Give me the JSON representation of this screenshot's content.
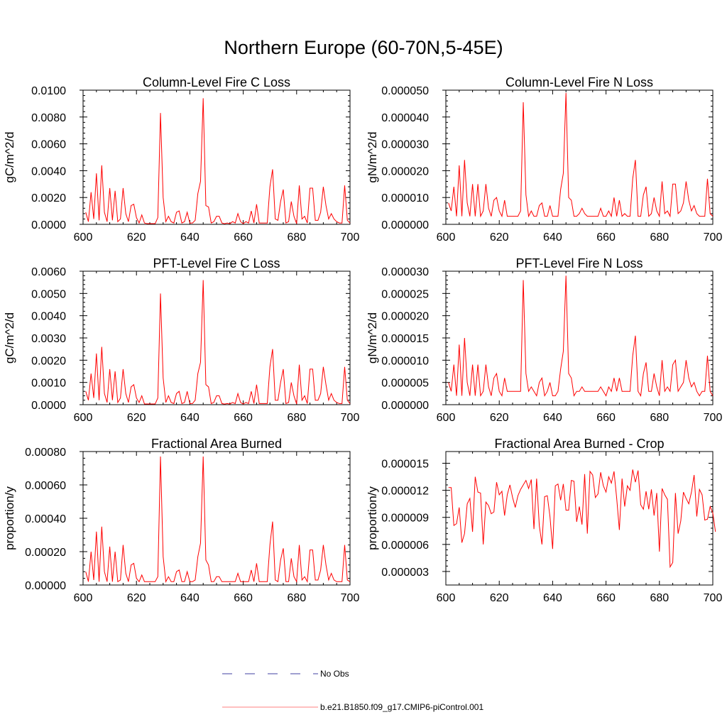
{
  "page_title": "Northern Europe (60-70N,5-45E)",
  "colors": {
    "model_line": "#ff0000",
    "obs_line": "#4040a0",
    "axis": "#000000"
  },
  "legend": [
    {
      "label": "No Obs",
      "style": "dashed",
      "color": "#4040a0"
    },
    {
      "label": "b.e21.B1850.f09_g17.CMIP6-piControl.001",
      "style": "solid",
      "color": "#ff8080"
    }
  ],
  "chart_data": [
    {
      "type": "line",
      "title": "Column-Level Fire C Loss",
      "ylabel": "gC/m^2/d",
      "xlim": [
        600,
        700
      ],
      "ylim": [
        0,
        0.01
      ],
      "xticks": [
        "600",
        "620",
        "640",
        "660",
        "680",
        "700"
      ],
      "yticks": [
        "0.0000",
        "0.0020",
        "0.0040",
        "0.0060",
        "0.0080",
        "0.0100"
      ],
      "x_start": 601,
      "series": [
        {
          "values": [
            0.0009,
            0.0002,
            0.0024,
            0.0004,
            0.0038,
            0.0003,
            0.0044,
            0.0009,
            0.0002,
            0.0027,
            0.0003,
            0.0025,
            0.0002,
            0.0004,
            0.0027,
            0.0008,
            0.0002,
            0.0014,
            0.0015,
            0.0005,
            0.0001,
            0.0007,
            0.0001,
            5e-05,
            5e-05,
            5e-05,
            5e-05,
            0.0005,
            0.0083,
            0.002,
            0.0002,
            0.0006,
            0.0002,
            0.0001,
            0.0009,
            0.001,
            0.0001,
            0.0002,
            0.0009,
            0.0001,
            0.0001,
            0.0003,
            0.0023,
            0.0032,
            0.0094,
            0.0014,
            0.0013,
            0.0001,
            0.0002,
            0.0006,
            0.0006,
            0.0001,
            5e-05,
            0.0001,
            5e-05,
            0.0002,
            0.0001,
            0.0008,
            0.0002,
            5e-05,
            0.0002,
            0.0001,
            0.001,
            0.0001,
            0.0015,
            0.0001,
            0.0001,
            0.0001,
            0.0001,
            0.0028,
            0.0041,
            0.0004,
            0.0003,
            0.0017,
            0.0026,
            0.0001,
            0.0002,
            0.0017,
            0.0006,
            5e-05,
            0.0029,
            0.0004,
            0.0006,
            0.0001,
            0.0027,
            0.0027,
            0.0003,
            0.0003,
            0.0009,
            0.0028,
            0.0014,
            0.0004,
            0.0008,
            0.0004,
            0.0002,
            0.0001,
            0.0001,
            0.0029,
            0.0003,
            0.0001
          ]
        }
      ]
    },
    {
      "type": "line",
      "title": "Column-Level Fire N Loss",
      "ylabel": "gN/m^2/d",
      "xlim": [
        600,
        700
      ],
      "ylim": [
        0,
        5e-05
      ],
      "xticks": [
        "600",
        "620",
        "640",
        "660",
        "680",
        "700"
      ],
      "yticks": [
        "0.000000",
        "0.000010",
        "0.000020",
        "0.000030",
        "0.000040",
        "0.000050"
      ],
      "x_start": 601,
      "series": [
        {
          "values": [
            8e-06,
            5e-06,
            1.4e-05,
            3e-06,
            2.2e-05,
            3e-06,
            2.4e-05,
            8e-06,
            3e-06,
            1.5e-05,
            3e-06,
            1.5e-05,
            3e-06,
            5e-06,
            1.5e-05,
            6e-06,
            3e-06,
            9e-06,
            1e-05,
            5e-06,
            3e-06,
            9e-06,
            3e-06,
            3e-06,
            3e-06,
            3e-06,
            3e-06,
            5e-06,
            4.55e-05,
            1.1e-05,
            3e-06,
            5e-06,
            3e-06,
            3e-06,
            7e-06,
            8e-06,
            3e-06,
            3e-06,
            7e-06,
            3e-06,
            3e-06,
            3e-06,
            1.3e-05,
            1.9e-05,
            4.9e-05,
            1e-05,
            9e-06,
            3e-06,
            3e-06,
            4e-06,
            6e-06,
            4e-06,
            3e-06,
            3e-06,
            3e-06,
            3e-06,
            3e-06,
            6e-06,
            3e-06,
            3e-06,
            5e-06,
            3e-06,
            1e-05,
            3e-06,
            9e-06,
            3e-06,
            4e-06,
            3e-06,
            3e-06,
            1.7e-05,
            2.4e-05,
            3e-06,
            3e-06,
            1.1e-05,
            1.4e-05,
            3e-06,
            4e-06,
            1e-05,
            5e-06,
            3e-06,
            1.6e-05,
            4e-06,
            5e-06,
            3e-06,
            1.5e-05,
            1.5e-05,
            4e-06,
            5e-06,
            8e-06,
            1.6e-05,
            9e-06,
            5e-06,
            7e-06,
            4e-06,
            3e-06,
            3e-06,
            3e-06,
            1.7e-05,
            4e-06,
            3e-06
          ]
        }
      ]
    },
    {
      "type": "line",
      "title": "PFT-Level Fire C Loss",
      "ylabel": "gC/m^2/d",
      "xlim": [
        600,
        700
      ],
      "ylim": [
        0,
        0.006
      ],
      "xticks": [
        "600",
        "620",
        "640",
        "660",
        "680",
        "700"
      ],
      "yticks": [
        "0.0000",
        "0.0010",
        "0.0020",
        "0.0030",
        "0.0040",
        "0.0050",
        "0.0060"
      ],
      "x_start": 601,
      "series": [
        {
          "values": [
            0.0006,
            0.0002,
            0.0014,
            0.0003,
            0.0023,
            0.0002,
            0.0026,
            0.0005,
            0.0001,
            0.0016,
            0.0002,
            0.0015,
            0.0001,
            0.0003,
            0.0016,
            0.0005,
            0.0001,
            0.0008,
            0.0009,
            0.0003,
            0.0001,
            0.0004,
            3e-05,
            3e-05,
            3e-05,
            3e-05,
            3e-05,
            0.0003,
            0.005,
            0.0012,
            0.0001,
            0.0004,
            0.0001,
            5e-05,
            0.0005,
            0.0006,
            5e-05,
            0.0001,
            0.0006,
            5e-05,
            5e-05,
            0.0002,
            0.0014,
            0.0019,
            0.0056,
            0.0009,
            0.0008,
            5e-05,
            0.0001,
            0.0004,
            0.0004,
            5e-05,
            3e-05,
            5e-05,
            3e-05,
            0.0001,
            5e-05,
            0.0005,
            0.0001,
            3e-05,
            0.0001,
            5e-05,
            0.0006,
            5e-05,
            0.0009,
            5e-05,
            5e-05,
            5e-05,
            5e-05,
            0.0017,
            0.0025,
            0.0002,
            0.0002,
            0.001,
            0.0016,
            5e-05,
            0.0001,
            0.001,
            0.0004,
            3e-05,
            0.0018,
            0.0002,
            0.0004,
            5e-05,
            0.0016,
            0.0016,
            0.0002,
            0.0002,
            0.0005,
            0.0017,
            0.0009,
            0.0002,
            0.0005,
            0.0002,
            0.0001,
            5e-05,
            5e-05,
            0.0017,
            0.0002,
            5e-05
          ]
        }
      ]
    },
    {
      "type": "line",
      "title": "PFT-Level Fire N Loss",
      "ylabel": "gN/m^2/d",
      "xlim": [
        600,
        700
      ],
      "ylim": [
        0,
        3e-05
      ],
      "xticks": [
        "600",
        "620",
        "640",
        "660",
        "680",
        "700"
      ],
      "yticks": [
        "0.000000",
        "0.000005",
        "0.000010",
        "0.000015",
        "0.000020",
        "0.000025",
        "0.000030"
      ],
      "x_start": 601,
      "series": [
        {
          "values": [
            5e-06,
            3e-06,
            9e-06,
            2e-06,
            1.35e-05,
            2e-06,
            1.5e-05,
            5e-06,
            2e-06,
            9e-06,
            2e-06,
            9e-06,
            2e-06,
            3e-06,
            9e-06,
            4e-06,
            2e-06,
            6e-06,
            7e-06,
            3e-06,
            2e-06,
            6e-06,
            3e-06,
            3e-06,
            3e-06,
            3e-06,
            3e-06,
            3e-06,
            2.8e-05,
            7e-06,
            3e-06,
            4e-06,
            3e-06,
            2e-06,
            5e-06,
            6e-06,
            2e-06,
            3e-06,
            5e-06,
            2e-06,
            2e-06,
            3e-06,
            8e-06,
            1.2e-05,
            2.9e-05,
            7e-06,
            6e-06,
            2e-06,
            3e-06,
            3e-06,
            4e-06,
            3e-06,
            3e-06,
            3e-06,
            3e-06,
            3e-06,
            3e-06,
            4e-06,
            3e-06,
            2e-06,
            4e-06,
            3e-06,
            6e-06,
            3e-06,
            6e-06,
            3e-06,
            3e-06,
            3e-06,
            3e-06,
            1.1e-05,
            1.55e-05,
            3e-06,
            2e-06,
            7e-06,
            9.5e-06,
            3e-06,
            3e-06,
            7e-06,
            4e-06,
            2e-06,
            1e-05,
            3e-06,
            4e-06,
            3e-06,
            9e-06,
            1e-05,
            3e-06,
            4e-06,
            5e-06,
            1e-05,
            6e-06,
            4e-06,
            5e-06,
            3e-06,
            2e-06,
            3e-06,
            3e-06,
            1.1e-05,
            3e-06,
            2e-06
          ]
        }
      ]
    },
    {
      "type": "line",
      "title": "Fractional Area Burned",
      "ylabel": "proportion/y",
      "xlim": [
        600,
        700
      ],
      "ylim": [
        0,
        0.0008
      ],
      "xticks": [
        "600",
        "620",
        "640",
        "660",
        "680",
        "700"
      ],
      "yticks": [
        "0.00000",
        "0.00020",
        "0.00040",
        "0.00060",
        "0.00080"
      ],
      "x_start": 601,
      "series": [
        {
          "values": [
            8e-05,
            2e-05,
            0.0002,
            3e-05,
            0.00032,
            2e-05,
            0.00035,
            8e-05,
            2e-05,
            0.00023,
            2e-05,
            0.0002,
            2e-05,
            3e-05,
            0.00024,
            7e-05,
            2e-05,
            0.00012,
            0.00013,
            4e-05,
            2e-05,
            6e-05,
            2e-05,
            2e-05,
            2e-05,
            2e-05,
            2e-05,
            5e-05,
            0.00077,
            0.00017,
            2e-05,
            5e-05,
            2e-05,
            2e-05,
            8e-05,
            9e-05,
            2e-05,
            2e-05,
            8e-05,
            2e-05,
            2e-05,
            3e-05,
            0.00017,
            0.00025,
            0.00077,
            0.00015,
            0.00012,
            2e-05,
            2e-05,
            5e-05,
            5e-05,
            2e-05,
            2e-05,
            2e-05,
            2e-05,
            2e-05,
            2e-05,
            7e-05,
            2e-05,
            2e-05,
            2e-05,
            2e-05,
            9e-05,
            2e-05,
            0.00013,
            2e-05,
            2e-05,
            2e-05,
            2e-05,
            0.00024,
            0.00038,
            3e-05,
            2e-05,
            0.00015,
            0.00022,
            2e-05,
            2e-05,
            0.00016,
            5e-05,
            2e-05,
            0.00024,
            3e-05,
            5e-05,
            2e-05,
            0.00021,
            0.00021,
            3e-05,
            3e-05,
            9e-05,
            0.00024,
            0.00012,
            3e-05,
            7e-05,
            3e-05,
            2e-05,
            2e-05,
            2e-05,
            0.00024,
            3e-05,
            2e-05
          ]
        }
      ]
    },
    {
      "type": "line",
      "title": "Fractional Area Burned - Crop",
      "ylabel": "proportion/y",
      "xlim": [
        600,
        700
      ],
      "ylim": [
        1.5e-06,
        1.63e-05
      ],
      "xticks": [
        "600",
        "620",
        "640",
        "660",
        "680",
        "700"
      ],
      "yticks": [
        "0.000003",
        "0.000006",
        "0.000009",
        "0.000012",
        "0.000015"
      ],
      "ytick_values": [
        3e-06,
        6e-06,
        9e-06,
        1.2e-05,
        1.5e-05
      ],
      "x_start": 601,
      "series": [
        {
          "values": [
            1.23e-05,
            1.23e-05,
            8.1e-06,
            8.3e-06,
            1.01e-05,
            6.2e-06,
            7.2e-06,
            1.05e-05,
            1.11e-05,
            7.4e-06,
            1.35e-05,
            1.18e-05,
            1.17e-05,
            6e-06,
            1.07e-05,
            1.03e-05,
            9.4e-06,
            9.6e-06,
            1.29e-05,
            1.15e-05,
            1.19e-05,
            9.2e-06,
            1.15e-05,
            1.26e-05,
            1.12e-05,
            1.01e-05,
            1.14e-05,
            1.21e-05,
            1.26e-05,
            1.31e-05,
            1.22e-05,
            1.32e-05,
            7.7e-06,
            1.33e-05,
            8.1e-06,
            6e-06,
            1.13e-05,
            1.14e-05,
            9.1e-06,
            5.5e-06,
            1.25e-05,
            1.27e-05,
            1.09e-05,
            1.27e-05,
            9.8e-06,
            9.8e-06,
            1.31e-05,
            1.3e-05,
            8.5e-06,
            1.02e-05,
            8.2e-06,
            1.38e-05,
            7.2e-06,
            1.41e-05,
            1.37e-05,
            1.12e-05,
            1.16e-05,
            1.4e-05,
            1.25e-05,
            1.18e-05,
            1.35e-05,
            1.28e-05,
            1.41e-05,
            1.11e-05,
            7.6e-06,
            1.33e-05,
            1.02e-05,
            1.25e-05,
            1.2e-05,
            1.43e-05,
            1.29e-05,
            1.42e-05,
            1.04e-05,
            9.9e-06,
            1.19e-05,
            9.9e-06,
            1.21e-05,
            9.2e-06,
            1.17e-05,
            5.2e-06,
            1.22e-05,
            1.15e-05,
            1.1e-05,
            3.5e-06,
            4e-06,
            1.17e-05,
            7.2e-06,
            8.6e-06,
            1.18e-05,
            1.11e-05,
            1.05e-05,
            1.18e-05,
            1.37e-05,
            9.1e-06,
            1.21e-05,
            1.15e-05,
            8.7e-06,
            8.8e-06,
            1.02e-05,
            9.5e-06,
            7.4e-06
          ]
        }
      ]
    }
  ]
}
